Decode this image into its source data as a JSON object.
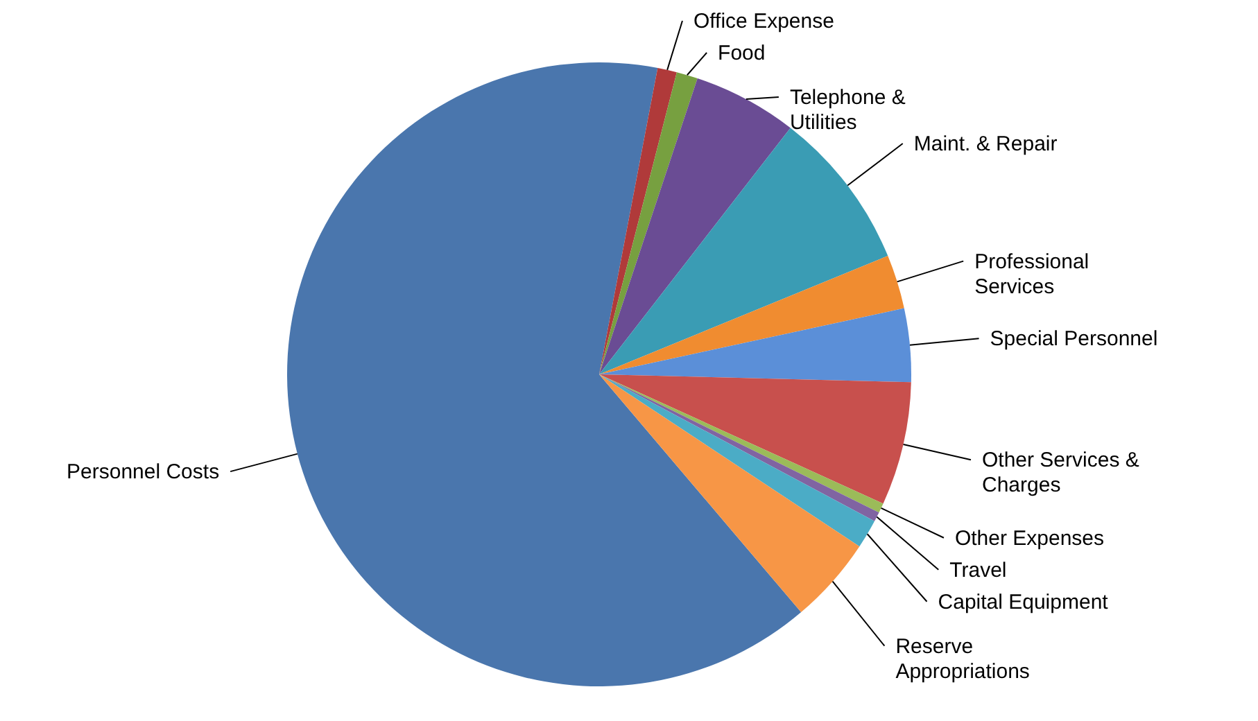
{
  "chart_data": {
    "type": "pie",
    "categories": [
      "Personnel Costs",
      "Office Expense",
      "Food",
      "Telephone & Utilities",
      "Maint. & Repair",
      "Professional Services",
      "Special Personnel",
      "Other Services & Charges",
      "Other Expenses",
      "Travel",
      "Capital Equipment",
      "Reserve Appropriations"
    ],
    "values": [
      64.2,
      1.0,
      1.1,
      5.4,
      8.3,
      2.8,
      3.8,
      6.4,
      0.5,
      0.5,
      1.5,
      4.5
    ],
    "colors": [
      "#4a76ad",
      "#b03a3a",
      "#77a040",
      "#6a4c94",
      "#3a9cb4",
      "#f08c30",
      "#5b8fd8",
      "#c8504d",
      "#9bbb59",
      "#8064a2",
      "#4bacc6",
      "#f79646"
    ]
  }
}
